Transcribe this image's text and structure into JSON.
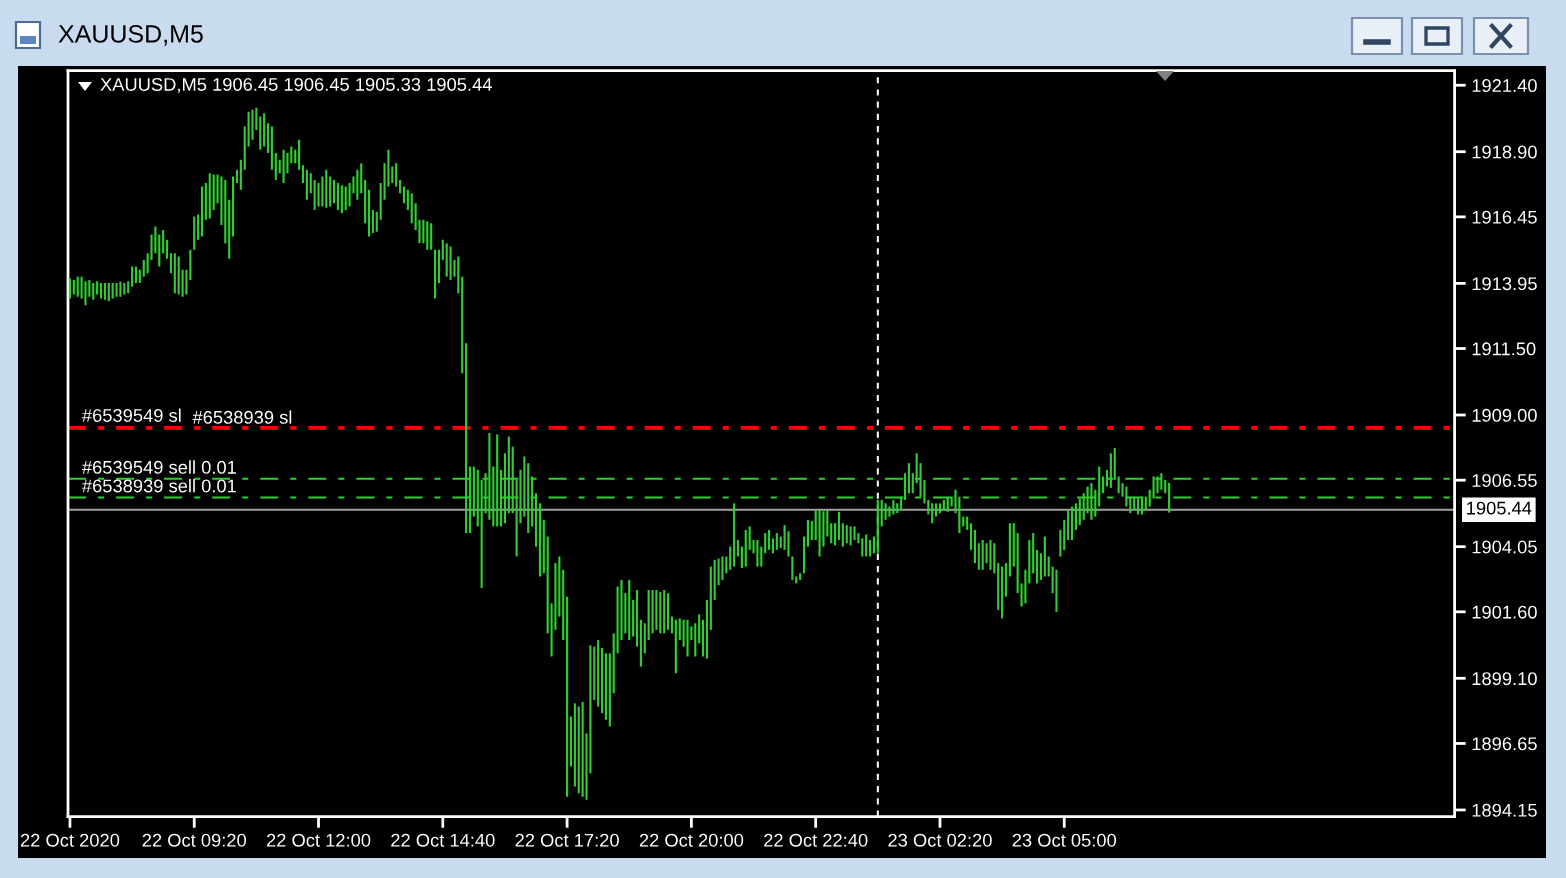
{
  "chart_data": {
    "type": "bar",
    "title": "XAUUSD,M5",
    "subtitle": "XAUUSD,M5 1906.45 1906.45 1905.33 1905.44",
    "color": "#32cd32",
    "categories": [
      "22 Oct 2020",
      null,
      null,
      null,
      null,
      null,
      null,
      null,
      null,
      null,
      null,
      null,
      null,
      null,
      null,
      null,
      null,
      null,
      null,
      null,
      null,
      null,
      null,
      null,
      null,
      null,
      null,
      null,
      null,
      null,
      null,
      null,
      "22 Oct 09:20",
      null,
      null,
      null,
      null,
      null,
      null,
      null,
      null,
      null,
      null,
      null,
      null,
      null,
      null,
      null,
      null,
      null,
      null,
      null,
      null,
      null,
      null,
      null,
      null,
      null,
      null,
      null,
      null,
      null,
      null,
      null,
      "22 Oct 12:00",
      null,
      null,
      null,
      null,
      null,
      null,
      null,
      null,
      null,
      null,
      null,
      null,
      null,
      null,
      null,
      null,
      null,
      null,
      null,
      null,
      null,
      null,
      null,
      null,
      null,
      null,
      null,
      null,
      null,
      null,
      null,
      "22 Oct 14:40",
      null,
      null,
      null,
      null,
      null,
      null,
      null,
      null,
      null,
      null,
      null,
      null,
      null,
      null,
      null,
      null,
      null,
      null,
      null,
      null,
      null,
      null,
      null,
      null,
      null,
      null,
      null,
      null,
      null,
      null,
      null,
      "22 Oct 17:20",
      null,
      null,
      null,
      null,
      null,
      null,
      null,
      null,
      null,
      null,
      null,
      null,
      null,
      null,
      null,
      null,
      null,
      null,
      null,
      null,
      null,
      null,
      null,
      null,
      null,
      null,
      null,
      null,
      null,
      null,
      null,
      "22 Oct 20:00",
      null,
      null,
      null,
      null,
      null,
      null,
      null,
      null,
      null,
      null,
      null,
      null,
      null,
      null,
      null,
      null,
      null,
      null,
      null,
      null,
      null,
      null,
      null,
      null,
      null,
      null,
      null,
      null,
      null,
      null,
      null,
      "22 Oct 22:40",
      null,
      null,
      null,
      null,
      null,
      null,
      null,
      null,
      null,
      null,
      null,
      null,
      null,
      null,
      null,
      null,
      null,
      null,
      null,
      null,
      null,
      null,
      null,
      null,
      null,
      null,
      null,
      null,
      null,
      null,
      null,
      "23 Oct 02:20",
      null,
      null,
      null,
      null,
      null,
      null,
      null,
      null,
      null,
      null,
      null,
      null,
      null,
      null,
      null,
      null,
      null,
      null,
      null,
      null,
      null,
      null,
      null,
      null,
      null,
      null,
      null,
      null,
      null,
      null,
      null,
      "23 Oct 05:00",
      null,
      null,
      null,
      null,
      null,
      null,
      null,
      null,
      null,
      null,
      null,
      null,
      null,
      null,
      null,
      null,
      null,
      null,
      null,
      null,
      null,
      null,
      null,
      null,
      null,
      null,
      null,
      null,
      null,
      null,
      null,
      null,
      null,
      null,
      null,
      null,
      null,
      null,
      null,
      null,
      null,
      null,
      null,
      null,
      null,
      null,
      null,
      null,
      null,
      null,
      null,
      null,
      null,
      null,
      null,
      null,
      null,
      null,
      null,
      null,
      null,
      null,
      null,
      null,
      null,
      null,
      null,
      null,
      null,
      null,
      null,
      null,
      null,
      null,
      null,
      null,
      null,
      null,
      null,
      null,
      null,
      null,
      null,
      null,
      null,
      null,
      null,
      null,
      null,
      null,
      null,
      null,
      null,
      null,
      null,
      null,
      null,
      null,
      null,
      null
    ],
    "base": [
      1913.38,
      1913.53,
      1913.45,
      1913.38,
      1913.13,
      1913.45,
      1913.33,
      1913.53,
      1913.38,
      1913.33,
      1913.28,
      1913.38,
      1913.45,
      1913.45,
      1913.53,
      1913.58,
      1913.83,
      1913.96,
      1913.96,
      1914.2,
      1914.33,
      1914.83,
      1915.08,
      1914.58,
      1915.08,
      1914.88,
      1914.33,
      1913.58,
      1913.53,
      1913.45,
      1913.53,
      1914.08,
      1915.21,
      1915.59,
      1915.71,
      1916.34,
      1916.39,
      1916.71,
      1916.96,
      1916.14,
      1915.46,
      1914.88,
      1915.71,
      1917.72,
      1917.47,
      1918.22,
      1919.1,
      1919.35,
      1919.72,
      1918.97,
      1919.1,
      1918.85,
      1918.22,
      1917.84,
      1918.09,
      1917.72,
      1918.09,
      1918.47,
      1918.47,
      1918.22,
      1917.72,
      1917.09,
      1917.34,
      1916.71,
      1916.84,
      1916.84,
      1916.79,
      1916.84,
      1916.96,
      1916.71,
      1916.59,
      1916.71,
      1916.84,
      1917.34,
      1917.09,
      1917.34,
      1916.21,
      1915.71,
      1915.84,
      1915.89,
      1916.34,
      1917.09,
      1917.59,
      1917.72,
      1917.59,
      1917.34,
      1916.96,
      1916.71,
      1916.21,
      1915.96,
      1915.46,
      1915.46,
      1915.21,
      1915.21,
      1913.38,
      1913.96,
      1914.83,
      1914.2,
      1914.08,
      1914.2,
      1913.58,
      1910.57,
      1904.56,
      1904.56,
      1905.18,
      1904.81,
      1902.5,
      1905.31,
      1905.06,
      1904.81,
      1904.81,
      1904.81,
      1904.93,
      1905.31,
      1905.31,
      1903.68,
      1904.93,
      1905.18,
      1904.56,
      1904.81,
      1904.05,
      1902.93,
      1903.05,
      1900.79,
      1899.92,
      1900.92,
      1901.42,
      1900.54,
      1894.65,
      1895.78,
      1895.03,
      1894.78,
      1894.65,
      1894.53,
      1895.53,
      1898.29,
      1898.04,
      1897.79,
      1897.54,
      1897.29,
      1898.54,
      1900.04,
      1900.54,
      1900.79,
      1900.54,
      1900.67,
      1900.29,
      1899.54,
      1900.04,
      1900.54,
      1900.79,
      1900.92,
      1900.79,
      1900.79,
      1900.92,
      1900.79,
      1899.29,
      1900.54,
      1900.29,
      1899.92,
      1900.54,
      1899.92,
      1900.42,
      1899.92,
      1899.84,
      1900.92,
      1902.05,
      1902.6,
      1902.8,
      1903.05,
      1903.18,
      1903.3,
      1903.68,
      1903.25,
      1903.3,
      1903.93,
      1903.8,
      1903.3,
      1903.3,
      1903.8,
      1903.93,
      1903.8,
      1903.93,
      1904.0,
      1903.93,
      1903.68,
      1902.8,
      1902.67,
      1902.8,
      1903.05,
      1904.05,
      1904.3,
      1904.3,
      1903.68,
      1904.05,
      1904.43,
      1904.18,
      1904.1,
      1904.3,
      1904.05,
      1904.18,
      1904.1,
      1904.3,
      1904.18,
      1903.68,
      1903.68,
      1903.68,
      1903.8,
      1903.8,
      1904.81,
      1905.06,
      1905.18,
      1905.26,
      1905.31,
      1905.43,
      1905.81,
      1906.06,
      1906.06,
      1906.44,
      1905.93,
      1905.68,
      1905.26,
      1904.93,
      1905.18,
      1905.31,
      1905.43,
      1905.36,
      1905.56,
      1905.31,
      1904.56,
      1904.81,
      1904.68,
      1903.93,
      1903.43,
      1903.18,
      1903.18,
      1903.43,
      1903.18,
      1903.05,
      1901.67,
      1901.35,
      1902.17,
      1902.93,
      1903.3,
      1902.3,
      1901.8,
      1901.92,
      1902.67,
      1903.05,
      1902.67,
      1902.8,
      1902.93,
      1902.93,
      1902.3,
      1901.6,
      1903.68,
      1903.93,
      1904.3,
      1904.3,
      1904.68,
      1904.86,
      1905.06,
      1905.31,
      1905.06,
      1905.18,
      1905.56,
      1906.06,
      1906.31,
      1906.26,
      1906.56,
      1906.06,
      1905.93,
      1905.56,
      1905.31,
      1905.43,
      1905.26,
      1905.26,
      1905.43,
      1905.56,
      1905.86,
      1906.06,
      1906.19,
      1906.06,
      1905.33,
      null,
      null,
      null,
      null,
      null,
      null,
      null,
      null,
      null,
      null,
      null,
      null,
      null,
      null,
      null,
      null,
      null,
      null,
      null,
      null,
      null,
      null,
      null,
      null,
      null,
      null,
      null,
      null,
      null,
      null,
      null,
      null,
      null,
      null,
      null,
      null,
      null,
      null,
      null,
      null,
      null,
      null,
      null,
      null,
      null,
      null,
      null,
      null,
      null,
      null,
      null,
      null,
      null,
      null,
      null,
      null,
      null,
      null,
      null,
      null,
      null,
      null,
      null,
      null,
      null,
      null,
      null,
      null,
      null,
      null,
      null,
      null,
      null
    ],
    "values": [
      0.75,
      0.55,
      0.75,
      0.82,
      0.9,
      0.63,
      0.63,
      0.5,
      0.58,
      0.63,
      0.68,
      0.58,
      0.51,
      0.56,
      0.43,
      0.45,
      0.75,
      0.62,
      0.5,
      0.63,
      0.75,
      0.96,
      1.01,
      1.21,
      0.88,
      0.71,
      0.75,
      1.5,
      1.43,
      1.01,
      0.93,
      1.13,
      1.25,
      0.95,
      1.88,
      1.38,
      1.7,
      1.33,
      1.08,
      1.83,
      2.38,
      2.21,
      2.26,
      0.5,
      1.13,
      1.63,
      1.3,
      1.13,
      0.83,
      1.25,
      1.25,
      1.12,
      1.63,
      1.01,
      0.51,
      1.25,
      0.76,
      0.63,
      0.5,
      1.13,
      0.67,
      1.13,
      0.75,
      1.13,
      0.88,
      1.13,
      1.43,
      1.13,
      0.88,
      1.01,
      1.05,
      0.88,
      0.88,
      0.63,
      1.13,
      1.13,
      1.63,
      1.76,
      0.87,
      0.75,
      1.38,
      1.38,
      1.38,
      0.62,
      0.88,
      0.5,
      0.63,
      0.76,
      1.13,
      1.0,
      0.88,
      0.88,
      1.08,
      1.0,
      1.83,
      1.25,
      0.76,
      1.26,
      1.26,
      0.63,
      1.38,
      3.63,
      7.14,
      2.5,
      1.88,
      2.13,
      4.06,
      1.5,
      3.26,
      2.25,
      3.46,
      2.13,
      2.63,
      2.88,
      2.5,
      2.88,
      2.01,
      2.26,
      2.63,
      1.88,
      2.01,
      2.75,
      2.01,
      3.64,
      2.0,
      2.51,
      2.26,
      2.64,
      7.52,
      1.88,
      3.13,
      3.26,
      3.56,
      2.5,
      4.81,
      2.0,
      2.5,
      2.45,
      2.5,
      2.75,
      2.25,
      2.51,
      2.26,
      1.51,
      2.26,
      1.38,
      2.13,
      1.76,
      1.13,
      1.88,
      1.63,
      1.5,
      1.56,
      1.63,
      1.38,
      0.63,
      2.01,
      0.81,
      1.01,
      1.38,
      0.51,
      1.25,
      1.08,
      1.38,
      2.21,
      2.38,
      1.5,
      1.0,
      0.88,
      0.63,
      0.87,
      2.38,
      0.62,
      0.8,
      1.38,
      0.88,
      0.5,
      1.0,
      0.75,
      0.76,
      0.75,
      0.56,
      0.63,
      0.43,
      0.93,
      0.95,
      0.88,
      0.26,
      0.25,
      1.38,
      1.01,
      0.71,
      1.13,
      1.75,
      1.33,
      1.0,
      0.75,
      0.83,
      1.06,
      0.88,
      0.68,
      0.71,
      0.51,
      0.38,
      0.68,
      0.83,
      0.62,
      0.63,
      2.01,
      1.0,
      0.62,
      0.38,
      0.55,
      0.37,
      0.5,
      1.0,
      1.13,
      0.75,
      1.12,
      1.26,
      0.88,
      0.55,
      0.75,
      0.5,
      0.37,
      0.38,
      0.57,
      0.37,
      0.88,
      1.37,
      0.37,
      0.5,
      1.0,
      1.25,
      1.0,
      1.12,
      0.75,
      1.12,
      1.13,
      1.76,
      1.95,
      1.26,
      2.0,
      1.63,
      2.26,
      0.87,
      1.26,
      1.63,
      1.51,
      1.26,
      1.0,
      1.5,
      0.75,
      1.0,
      1.58,
      1.0,
      1.13,
      1.13,
      1.26,
      1.0,
      1.0,
      1.0,
      1.0,
      1.38,
      1.01,
      1.5,
      0.63,
      0.63,
      1.3,
      1.2,
      0.63,
      0.51,
      0.75,
      0.62,
      0.5,
      0.6,
      0.67,
      0.5,
      0.63,
      0.83,
      0.63,
      0.62,
      0.5,
      1.12,
      null,
      null,
      null,
      null,
      null,
      null,
      null,
      null,
      null,
      null,
      null,
      null,
      null,
      null,
      null,
      null,
      null,
      null,
      null,
      null,
      null,
      null,
      null,
      null,
      null,
      null,
      null,
      null,
      null,
      null,
      null,
      null,
      null,
      null,
      null,
      null,
      null,
      null,
      null,
      null,
      null,
      null,
      null,
      null,
      null,
      null,
      null,
      null,
      null,
      null,
      null,
      null,
      null,
      null,
      null,
      null,
      null,
      null,
      null,
      null,
      null,
      null,
      null,
      null,
      null,
      null,
      null,
      null,
      null,
      null,
      null,
      null,
      null
    ],
    "ylim": [
      1893.9,
      1921.95
    ],
    "yticks": [
      {
        "value": 1921.4,
        "label": "1921.40"
      },
      {
        "value": 1918.9,
        "label": "1918.90"
      },
      {
        "value": 1916.45,
        "label": "1916.45"
      },
      {
        "value": 1913.95,
        "label": "1913.95"
      },
      {
        "value": 1911.5,
        "label": "1911.50"
      },
      {
        "value": 1909.0,
        "label": "1909.00"
      },
      {
        "value": 1906.55,
        "label": "1906.55"
      },
      {
        "value": 1904.05,
        "label": "1904.05"
      },
      {
        "value": 1901.6,
        "label": "1901.60"
      },
      {
        "value": 1899.1,
        "label": "1899.10"
      },
      {
        "value": 1896.65,
        "label": "1896.65"
      },
      {
        "value": 1894.15,
        "label": "1894.15"
      }
    ],
    "ref_lines": [
      {
        "axis": "y",
        "value": 1908.55,
        "label": "#6539549 sl",
        "color": "#ff0000",
        "line_style": "dashdot"
      },
      {
        "axis": "y",
        "value": 1908.48,
        "label": "#6538939 sl",
        "color": "#ff0000",
        "line_style": "dashdot"
      },
      {
        "axis": "y",
        "value": 1906.6,
        "label": "#6539549 sell 0.01",
        "color": "#32cd32",
        "line_style": "dashdot"
      },
      {
        "axis": "y",
        "value": 1905.9,
        "label": "#6538939 sell 0.01",
        "color": "#32cd32",
        "line_style": "dashdot"
      },
      {
        "axis": "y",
        "value": 1905.44,
        "label": "1905.44",
        "color": "#a0a0a0",
        "line_style": "solid"
      }
    ]
  }
}
